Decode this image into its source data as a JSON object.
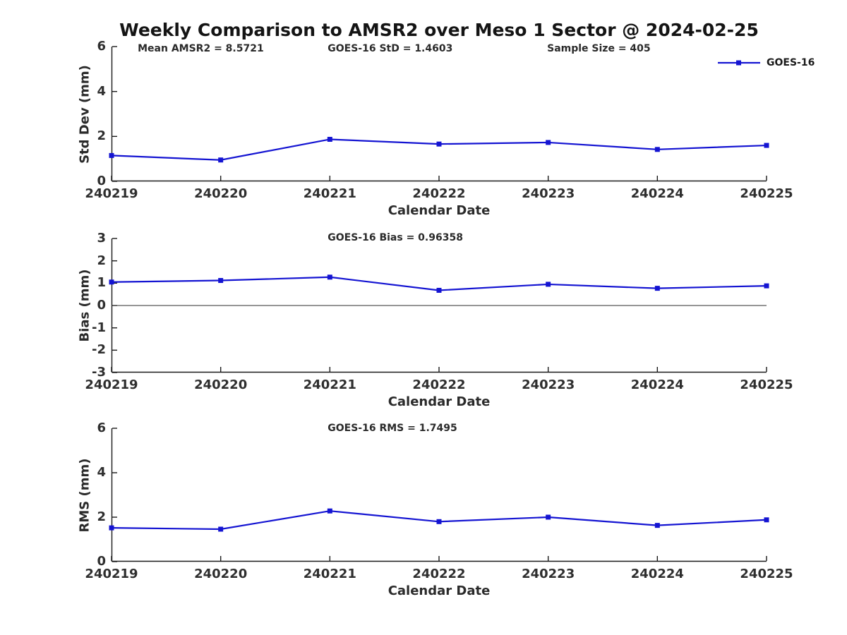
{
  "page": {
    "title": "Weekly Comparison to AMSR2 over Meso 1 Sector @ 2024-02-25"
  },
  "legend": {
    "label": "GOES-16",
    "color": "#1414d2"
  },
  "colors": {
    "line": "#1414d2",
    "axis": "#1a1a1a",
    "zero_line": "#2e2e2e"
  },
  "chart_data": [
    {
      "type": "line",
      "name": "std-dev",
      "categories": [
        "240219",
        "240220",
        "240221",
        "240222",
        "240223",
        "240224",
        "240225"
      ],
      "series": [
        {
          "name": "GOES-16",
          "values": [
            1.15,
            0.95,
            1.87,
            1.66,
            1.73,
            1.42,
            1.6
          ]
        }
      ],
      "annotations": [
        {
          "text": "Mean AMSR2 = 8.5721",
          "x_pct": 4.0
        },
        {
          "text": "GOES-16 StD = 1.4603",
          "x_pct": 33.0
        },
        {
          "text": "Sample Size = 405",
          "x_pct": 66.5
        }
      ],
      "xlabel": "Calendar Date",
      "ylabel": "Std Dev (mm)",
      "ylim": [
        0,
        6
      ],
      "yticks": [
        0,
        2,
        4,
        6
      ],
      "zero_line": false,
      "grid": false,
      "legend_position": "top-right"
    },
    {
      "type": "line",
      "name": "bias",
      "categories": [
        "240219",
        "240220",
        "240221",
        "240222",
        "240223",
        "240224",
        "240225"
      ],
      "series": [
        {
          "name": "GOES-16",
          "values": [
            1.05,
            1.12,
            1.27,
            0.68,
            0.95,
            0.77,
            0.88
          ]
        }
      ],
      "annotations": [
        {
          "text": "GOES-16 Bias  = 0.96358",
          "x_pct": 33.0
        }
      ],
      "xlabel": "Calendar Date",
      "ylabel": "Bias (mm)",
      "ylim": [
        -3,
        3
      ],
      "yticks": [
        -3,
        -2,
        -1,
        0,
        1,
        2,
        3
      ],
      "zero_line": true,
      "grid": false,
      "legend_position": "none"
    },
    {
      "type": "line",
      "name": "rms",
      "categories": [
        "240219",
        "240220",
        "240221",
        "240222",
        "240223",
        "240224",
        "240225"
      ],
      "series": [
        {
          "name": "GOES-16",
          "values": [
            1.52,
            1.46,
            2.28,
            1.8,
            2.0,
            1.63,
            1.88
          ]
        }
      ],
      "annotations": [
        {
          "text": "GOES-16 RMS = 1.7495",
          "x_pct": 33.0
        }
      ],
      "xlabel": "Calendar Date",
      "ylabel": "RMS (mm)",
      "ylim": [
        0,
        6
      ],
      "yticks": [
        0,
        2,
        4,
        6
      ],
      "zero_line": false,
      "grid": false,
      "legend_position": "none"
    }
  ]
}
